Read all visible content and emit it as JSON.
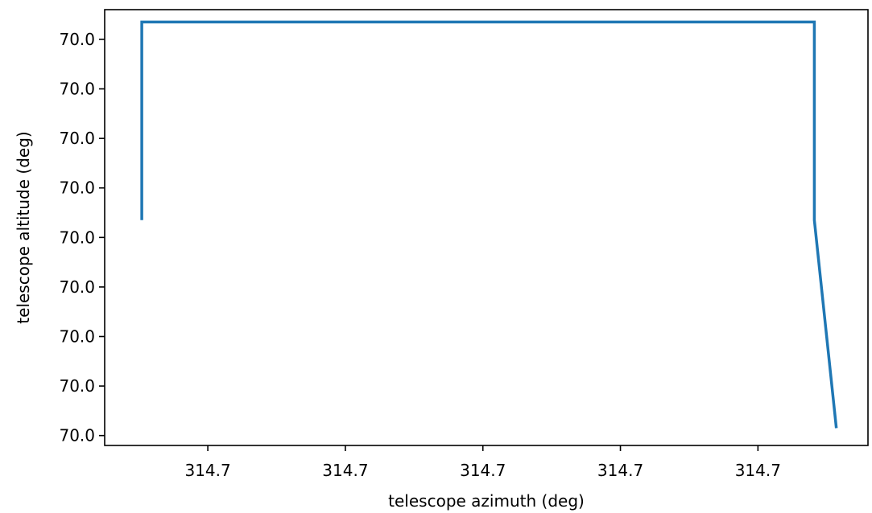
{
  "chart_data": {
    "type": "line",
    "title": "",
    "xlabel": "telescope azimuth (deg)",
    "ylabel": "telescope altitude (deg)",
    "x_tick_labels": [
      "314.7",
      "314.7",
      "314.7",
      "314.7",
      "314.7"
    ],
    "y_tick_labels": [
      "70.0",
      "70.0",
      "70.0",
      "70.0",
      "70.0",
      "70.0",
      "70.0",
      "70.0",
      "70.0"
    ],
    "x_tick_values": [
      1,
      2,
      3,
      4,
      5
    ],
    "y_tick_values": [
      0,
      1,
      2,
      3,
      4,
      5,
      6,
      7,
      8
    ],
    "xlim": [
      0.25,
      5.8
    ],
    "ylim": [
      -0.2,
      8.6
    ],
    "grid": false,
    "series": [
      {
        "color": "#1f77b4",
        "x": [
          0.52,
          0.52,
          5.41,
          5.41,
          5.57
        ],
        "y": [
          4.35,
          8.35,
          8.35,
          4.35,
          0.15
        ]
      }
    ]
  }
}
